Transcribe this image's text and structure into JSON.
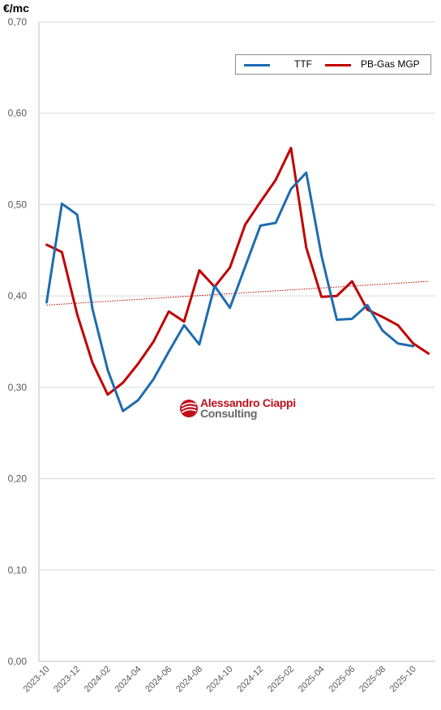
{
  "chart_data": {
    "type": "line",
    "ylabel": "€/mc",
    "ylim": [
      0,
      0.7
    ],
    "yticks": [
      "0,00",
      "0,10",
      "0,20",
      "0,30",
      "0,40",
      "0,50",
      "0,60",
      "0,70"
    ],
    "ytick_values": [
      0,
      0.1,
      0.2,
      0.3,
      0.4,
      0.5,
      0.6,
      0.7
    ],
    "x": [
      "2023-10",
      "2023-11",
      "2023-12",
      "2024-01",
      "2024-02",
      "2024-03",
      "2024-04",
      "2024-05",
      "2024-06",
      "2024-07",
      "2024-08",
      "2024-09",
      "2024-10",
      "2024-11",
      "2024-12",
      "2025-01",
      "2025-02",
      "2025-03",
      "2025-04",
      "2025-05",
      "2025-06",
      "2025-07",
      "2025-08",
      "2025-09",
      "2025-10",
      "2025-11"
    ],
    "xtick_labels": [
      "2023-10",
      "2023-12",
      "2024-02",
      "2024-04",
      "2024-06",
      "2024-08",
      "2024-10",
      "2024-12",
      "2025-02",
      "2025-04",
      "2025-06",
      "2025-08",
      "2025-10"
    ],
    "series": [
      {
        "name": "TTF",
        "color": "#1f6bb0",
        "values": [
          0.393,
          0.501,
          0.489,
          0.386,
          0.319,
          0.274,
          0.286,
          0.309,
          0.339,
          0.368,
          0.347,
          0.411,
          0.387,
          0.432,
          0.477,
          0.48,
          0.517,
          0.535,
          0.444,
          0.374,
          0.375,
          0.39,
          0.362,
          0.348,
          0.345,
          null
        ]
      },
      {
        "name": "PB-Gas MGP",
        "color": "#c00000",
        "values": [
          0.456,
          0.448,
          0.38,
          0.327,
          0.292,
          0.305,
          0.326,
          0.35,
          0.383,
          0.372,
          0.428,
          0.41,
          0.431,
          0.478,
          0.503,
          0.527,
          0.562,
          0.453,
          0.399,
          0.4,
          0.416,
          0.385,
          0.377,
          0.368,
          0.348,
          0.337
        ]
      }
    ],
    "trendline": {
      "series": "PB-Gas MGP",
      "color": "#c00000",
      "start": 0.39,
      "end": 0.416
    },
    "legend_position": "top-right",
    "grid": "horizontal"
  },
  "watermark": {
    "line1": "Alessandro Ciappi",
    "line2": "Consulting"
  }
}
